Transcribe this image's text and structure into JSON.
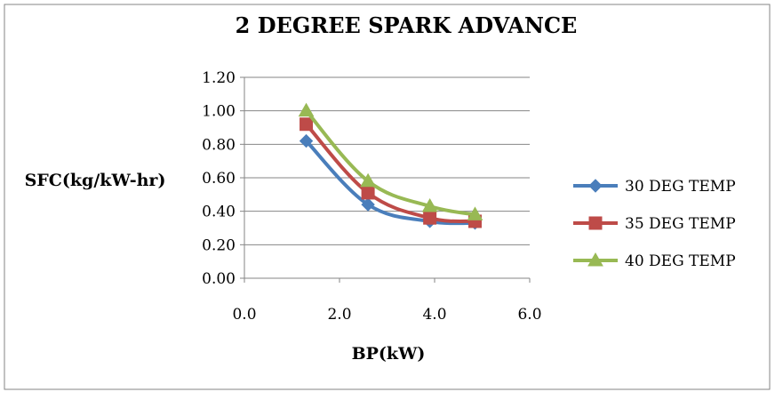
{
  "chart_data": {
    "type": "line",
    "title": "2 DEGREE SPARK ADVANCE",
    "xlabel": "BP(kW)",
    "ylabel": "SFC(kg/kW-hr)",
    "xlim": [
      0,
      6
    ],
    "ylim": [
      0,
      1.2
    ],
    "x_ticks": [
      "0.0",
      "2.0",
      "4.0",
      "6.0"
    ],
    "y_ticks": [
      "0.00",
      "0.20",
      "0.40",
      "0.60",
      "0.80",
      "1.00",
      "1.20"
    ],
    "grid": "horizontal",
    "legend_position": "right",
    "series": [
      {
        "name": "30 DEG TEMP",
        "color": "#4a7ebb",
        "marker": "diamond",
        "x": [
          1.3,
          2.6,
          3.9,
          4.85
        ],
        "y": [
          0.82,
          0.44,
          0.34,
          0.33
        ]
      },
      {
        "name": "35 DEG TEMP",
        "color": "#be4b48",
        "marker": "square",
        "x": [
          1.3,
          2.6,
          3.9,
          4.85
        ],
        "y": [
          0.92,
          0.51,
          0.36,
          0.34
        ]
      },
      {
        "name": "40 DEG TEMP",
        "color": "#98b954",
        "marker": "triangle",
        "x": [
          1.3,
          2.6,
          3.9,
          4.85
        ],
        "y": [
          1.0,
          0.58,
          0.43,
          0.38
        ]
      }
    ]
  }
}
